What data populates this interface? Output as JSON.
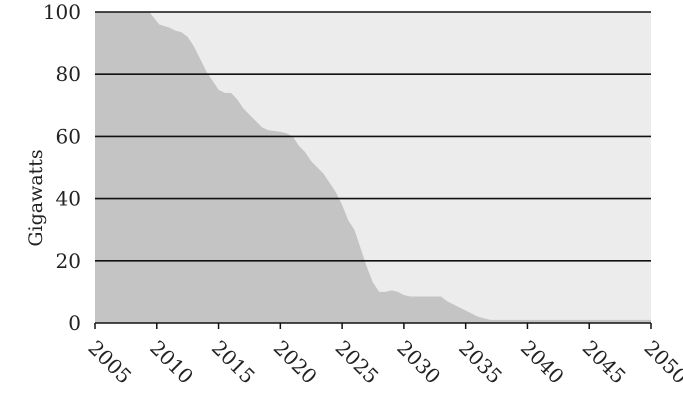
{
  "chart_data": {
    "type": "area",
    "title": "",
    "xlabel": "",
    "ylabel": "Gigawatts",
    "xlim": [
      2005,
      2050
    ],
    "ylim": [
      0,
      100
    ],
    "x_ticks": [
      2005,
      2010,
      2015,
      2020,
      2025,
      2030,
      2035,
      2040,
      2045,
      2050
    ],
    "y_ticks": [
      0,
      20,
      40,
      60,
      80,
      100
    ],
    "grid": "horizontal",
    "colors": {
      "area_fill": "#c4c4c4",
      "plot_background": "#ececec",
      "gridline": "#111111"
    },
    "series": [
      {
        "x": [
          2005,
          2009.4,
          2009.8,
          2010.2,
          2011,
          2011.5,
          2012,
          2012.5,
          2013,
          2013.5,
          2014,
          2014.5,
          2015,
          2015.5,
          2016,
          2016.5,
          2017,
          2017.5,
          2018,
          2018.5,
          2019,
          2020,
          2020.5,
          2021,
          2021.5,
          2022,
          2022.5,
          2023,
          2023.5,
          2024,
          2024.5,
          2025,
          2025.5,
          2026,
          2026.5,
          2027,
          2027.5,
          2028,
          2028.5,
          2029,
          2029.5,
          2030,
          2030.5,
          2031,
          2032,
          2033,
          2033.5,
          2034,
          2034.5,
          2035,
          2035.5,
          2036,
          2036.5,
          2037,
          2038,
          2040,
          2045,
          2050
        ],
        "values": [
          100,
          100,
          98,
          96,
          95,
          94,
          93.5,
          92,
          89,
          85,
          81,
          78,
          75,
          74,
          74,
          72,
          69,
          67,
          65,
          63,
          62,
          61.5,
          61,
          60,
          57,
          55,
          52,
          50,
          48,
          45,
          42,
          38,
          33,
          30,
          24,
          18,
          13,
          10,
          10,
          10.5,
          10,
          9,
          8.5,
          8.5,
          8.5,
          8.5,
          7,
          6,
          5,
          4,
          3,
          2,
          1.5,
          1,
          1,
          1,
          1,
          1
        ]
      }
    ]
  }
}
